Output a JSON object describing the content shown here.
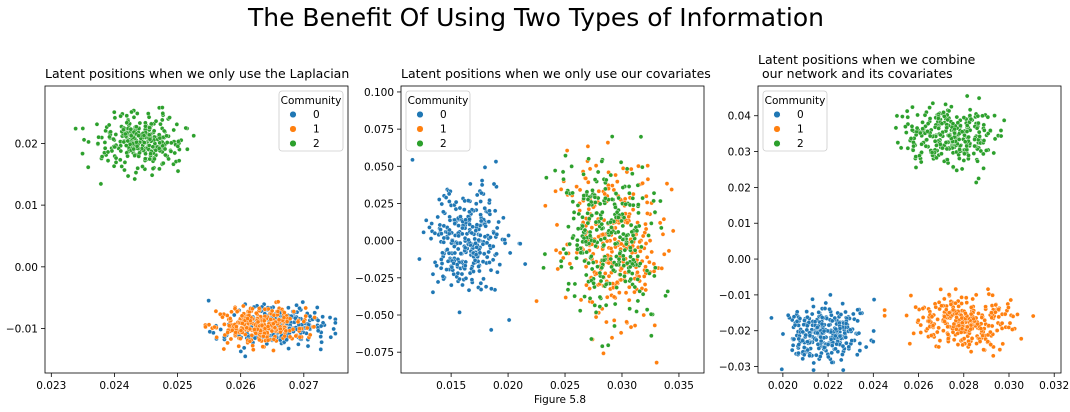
{
  "figure": {
    "suptitle": "The Benefit Of Using Two Types of Information",
    "caption": "Figure 5.8"
  },
  "colors": {
    "0": "#1f77b4",
    "1": "#ff7f0e",
    "2": "#2ca02c"
  },
  "chart_data": [
    {
      "type": "scatter",
      "title_lines": [
        "Latent positions when we only use the Laplacian"
      ],
      "xlim": [
        0.0229,
        0.0277
      ],
      "ylim": [
        -0.0172,
        0.0293
      ],
      "xticks": [
        0.023,
        0.024,
        0.025,
        0.026,
        0.027
      ],
      "xtick_labels": [
        "0.023",
        "0.024",
        "0.025",
        "0.026",
        "0.027"
      ],
      "yticks": [
        -0.01,
        0.0,
        0.01,
        0.02
      ],
      "ytick_labels": [
        "−0.01",
        "0.00",
        "0.01",
        "0.02"
      ],
      "legend": {
        "title": "Community",
        "location": "upper right",
        "entries": [
          "0",
          "1",
          "2"
        ]
      },
      "series": [
        {
          "name": "0",
          "count": 300,
          "center": [
            0.02655,
            -0.0097
          ],
          "spread": [
            0.00038,
            0.0016
          ],
          "range_x": [
            0.0254,
            0.0275
          ],
          "range_y": [
            -0.0145,
            -0.0045
          ]
        },
        {
          "name": "1",
          "count": 300,
          "center": [
            0.0263,
            -0.0095
          ],
          "spread": [
            0.00035,
            0.0015
          ],
          "range_x": [
            0.0252,
            0.0273
          ],
          "range_y": [
            -0.015,
            -0.004
          ]
        },
        {
          "name": "2",
          "count": 300,
          "center": [
            0.02445,
            0.0205
          ],
          "spread": [
            0.00033,
            0.0022
          ],
          "range_x": [
            0.0231,
            0.0263
          ],
          "range_y": [
            0.0122,
            0.0275
          ]
        }
      ]
    },
    {
      "type": "scatter",
      "title_lines": [
        "Latent positions when we only use our covariates"
      ],
      "xlim": [
        0.0106,
        0.0372
      ],
      "ylim": [
        -0.089,
        0.104
      ],
      "xticks": [
        0.015,
        0.02,
        0.025,
        0.03,
        0.035
      ],
      "xtick_labels": [
        "0.015",
        "0.020",
        "0.025",
        "0.030",
        "0.035"
      ],
      "yticks": [
        -0.075,
        -0.05,
        -0.025,
        0.0,
        0.025,
        0.05,
        0.075,
        0.1
      ],
      "ytick_labels": [
        "−0.075",
        "−0.050",
        "−0.025",
        "0.000",
        "0.025",
        "0.050",
        "0.075",
        "0.100"
      ],
      "legend": {
        "title": "Community",
        "location": "upper left",
        "entries": [
          "0",
          "1",
          "2"
        ]
      },
      "series": [
        {
          "name": "0",
          "count": 300,
          "center": [
            0.0165,
            0.0
          ],
          "spread": [
            0.0017,
            0.018
          ],
          "range_x": [
            0.0115,
            0.0215
          ],
          "range_y": [
            -0.06,
            0.057
          ]
        },
        {
          "name": "1",
          "count": 300,
          "center": [
            0.029,
            -0.003
          ],
          "spread": [
            0.0022,
            0.028
          ],
          "range_x": [
            0.0225,
            0.035
          ],
          "range_y": [
            -0.082,
            0.097
          ]
        },
        {
          "name": "2",
          "count": 300,
          "center": [
            0.029,
            0.0
          ],
          "spread": [
            0.0021,
            0.027
          ],
          "range_x": [
            0.022,
            0.0362
          ],
          "range_y": [
            -0.083,
            0.07
          ]
        }
      ]
    },
    {
      "type": "scatter",
      "title_lines": [
        "Latent positions when we combine",
        " our network and its covariates"
      ],
      "xlim": [
        0.0189,
        0.0323
      ],
      "ylim": [
        -0.0318,
        0.0483
      ],
      "xticks": [
        0.02,
        0.022,
        0.024,
        0.026,
        0.028,
        0.03,
        0.032
      ],
      "xtick_labels": [
        "0.020",
        "0.022",
        "0.024",
        "0.026",
        "0.028",
        "0.030",
        "0.032"
      ],
      "yticks": [
        -0.03,
        -0.02,
        -0.01,
        0.0,
        0.01,
        0.02,
        0.03,
        0.04
      ],
      "ytick_labels": [
        "−0.03",
        "−0.02",
        "−0.01",
        "0.00",
        "0.01",
        "0.02",
        "0.03",
        "0.04"
      ],
      "legend": {
        "title": "Community",
        "location": "upper left",
        "entries": [
          "0",
          "1",
          "2"
        ]
      },
      "series": [
        {
          "name": "0",
          "count": 300,
          "center": [
            0.0218,
            -0.0205
          ],
          "spread": [
            0.00085,
            0.0037
          ],
          "range_x": [
            0.0192,
            0.0247
          ],
          "range_y": [
            -0.031,
            -0.01
          ]
        },
        {
          "name": "1",
          "count": 300,
          "center": [
            0.028,
            -0.0175
          ],
          "spread": [
            0.00105,
            0.0037
          ],
          "range_x": [
            0.0245,
            0.0318
          ],
          "range_y": [
            -0.027,
            -0.0055
          ]
        },
        {
          "name": "2",
          "count": 300,
          "center": [
            0.0273,
            0.0345
          ],
          "spread": [
            0.00105,
            0.0041
          ],
          "range_x": [
            0.025,
            0.0308
          ],
          "range_y": [
            0.02,
            0.0455
          ]
        }
      ]
    }
  ]
}
